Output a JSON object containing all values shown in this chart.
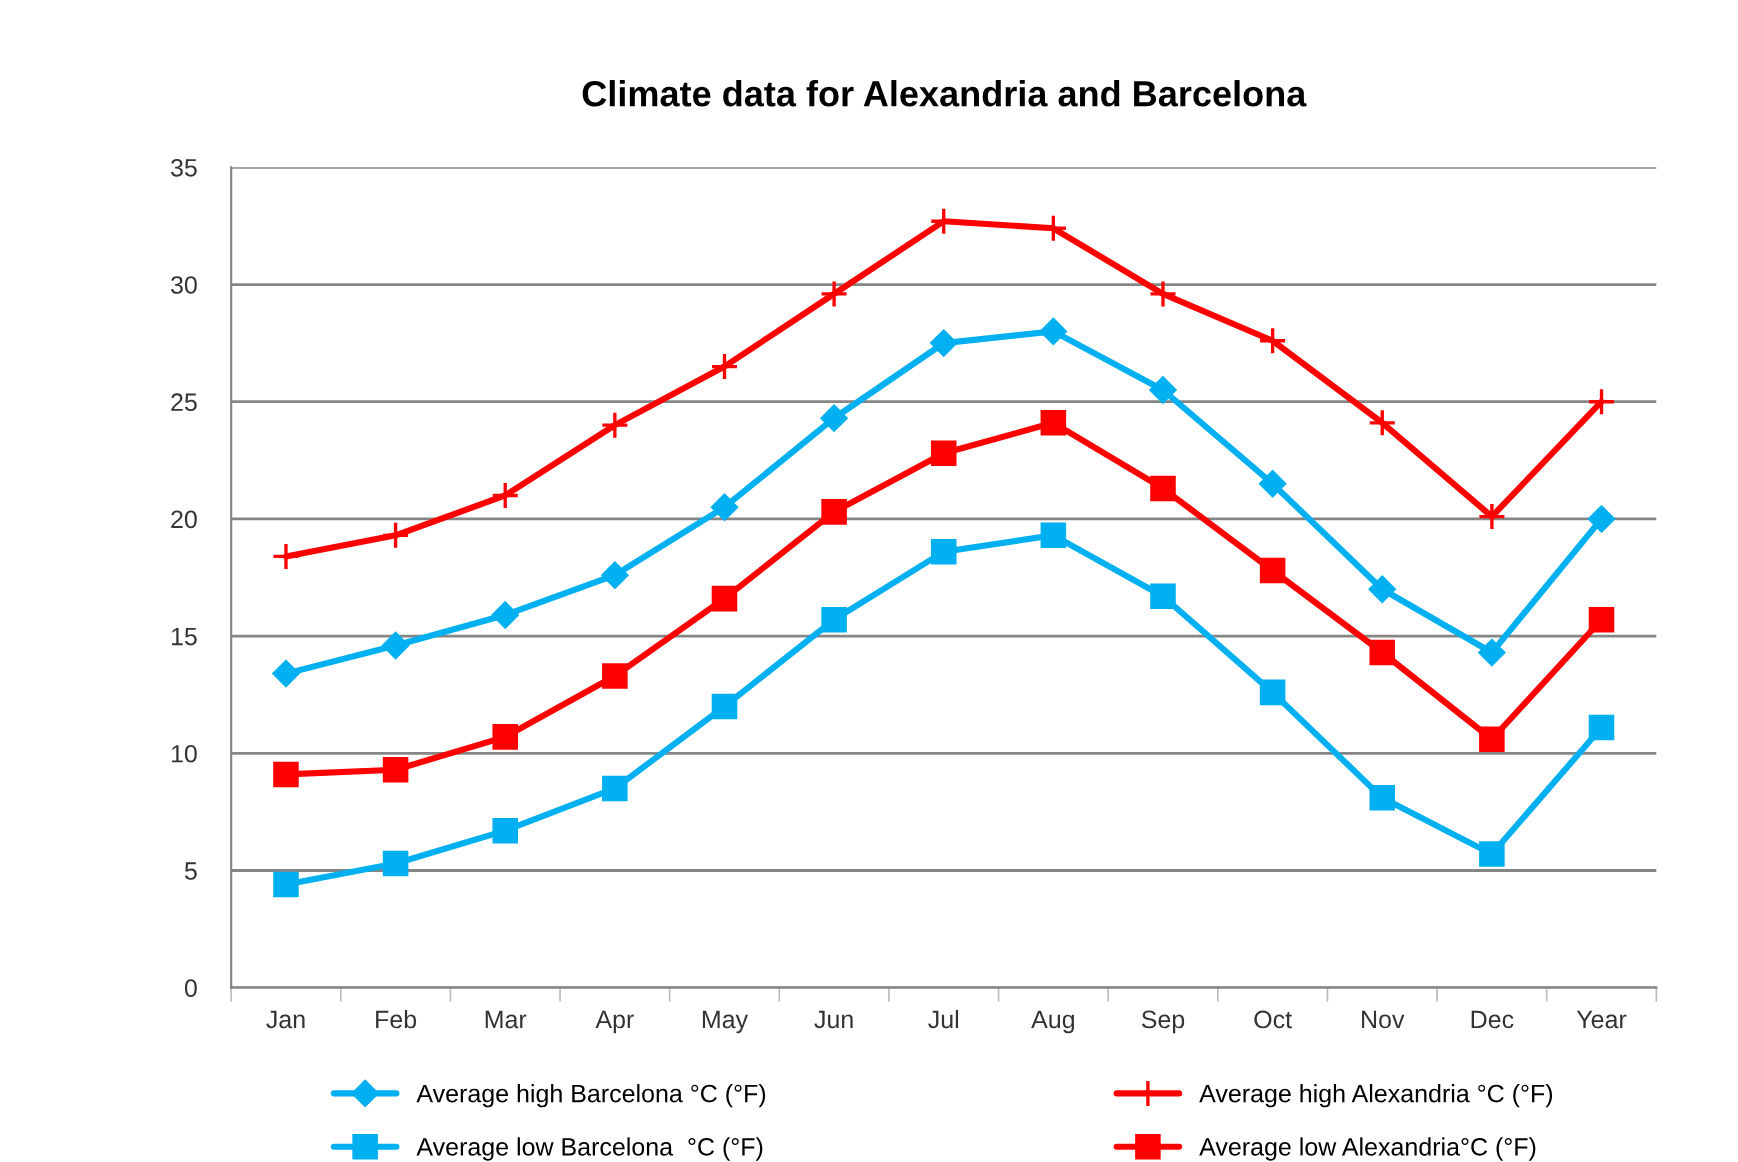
{
  "chart_data": {
    "type": "line",
    "title": "Climate data for Alexandria and Barcelona",
    "categories": [
      "Jan",
      "Feb",
      "Mar",
      "Apr",
      "May",
      "Jun",
      "Jul",
      "Aug",
      "Sep",
      "Oct",
      "Nov",
      "Dec",
      "Year"
    ],
    "series": [
      {
        "name": "Average high Barcelona °C (°F)",
        "color": "#00b0f0",
        "marker": "diamond",
        "values": [
          13.4,
          14.6,
          15.9,
          17.6,
          20.5,
          24.3,
          27.5,
          28.0,
          25.5,
          21.5,
          17.0,
          14.3,
          20.0
        ]
      },
      {
        "name": "Average low Barcelona  °C (°F)",
        "color": "#00b0f0",
        "marker": "square",
        "values": [
          4.4,
          5.3,
          6.7,
          8.5,
          12.0,
          15.7,
          18.6,
          19.3,
          16.7,
          12.6,
          8.1,
          5.7,
          11.1
        ]
      },
      {
        "name": "Average high Alexandria °C (°F)",
        "color": "#ff0000",
        "marker": "cross",
        "values": [
          18.4,
          19.3,
          21.0,
          24.0,
          26.5,
          29.6,
          32.7,
          32.4,
          29.6,
          27.6,
          24.1,
          20.1,
          25.0
        ]
      },
      {
        "name": "Average low Alexandria°C (°F)",
        "color": "#ff0000",
        "marker": "square",
        "values": [
          9.1,
          9.3,
          10.7,
          13.3,
          16.6,
          20.3,
          22.8,
          24.1,
          21.3,
          17.8,
          14.3,
          10.6,
          15.7
        ]
      }
    ],
    "ylim": [
      0,
      35
    ],
    "yticks": [
      0,
      5,
      10,
      15,
      20,
      25,
      30,
      35
    ],
    "grid": "y",
    "legend": "bottom"
  }
}
